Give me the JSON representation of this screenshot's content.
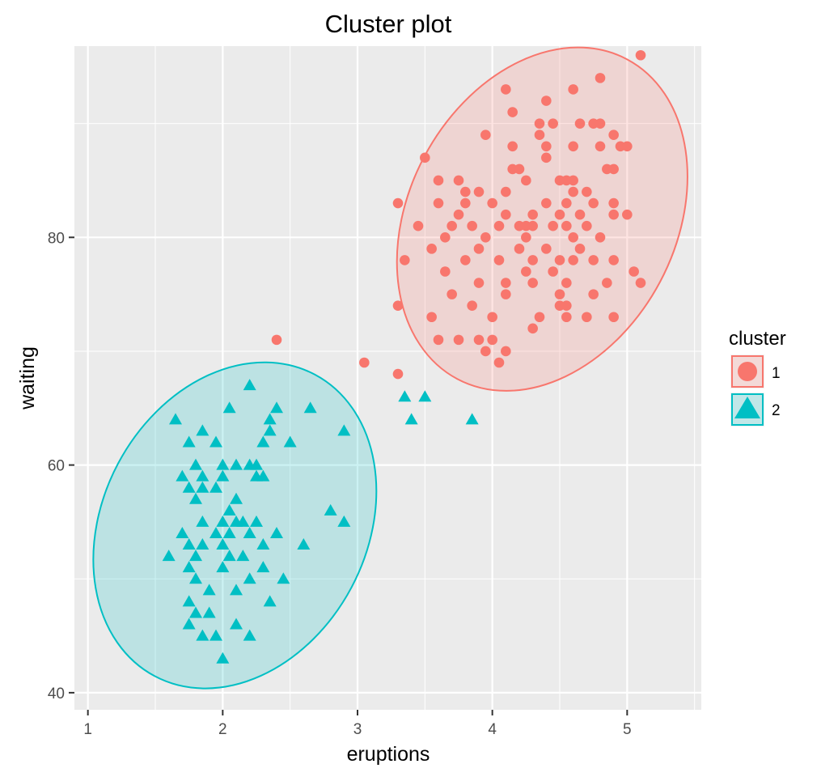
{
  "chart_data": {
    "type": "scatter",
    "title": "Cluster plot",
    "xlabel": "eruptions",
    "ylabel": "waiting",
    "xlim": [
      0.9,
      5.55
    ],
    "ylim": [
      38.5,
      96.8
    ],
    "xticks": [
      1,
      2,
      3,
      4,
      5
    ],
    "yticks": [
      40,
      60,
      80
    ],
    "grid": true,
    "legend": {
      "title": "cluster",
      "position": "right"
    },
    "colors": {
      "1": "#F8766D",
      "2": "#00BFC4"
    },
    "series": [
      {
        "name": "1",
        "marker": "circle",
        "points": [
          [
            5.1,
            96
          ],
          [
            4.8,
            94
          ],
          [
            4.6,
            93
          ],
          [
            4.1,
            93
          ],
          [
            4.4,
            92
          ],
          [
            4.15,
            91
          ],
          [
            4.35,
            90
          ],
          [
            4.45,
            90
          ],
          [
            4.65,
            90
          ],
          [
            4.75,
            90
          ],
          [
            4.8,
            90
          ],
          [
            4.9,
            89
          ],
          [
            3.95,
            89
          ],
          [
            4.35,
            89
          ],
          [
            4.15,
            88
          ],
          [
            4.4,
            88
          ],
          [
            4.6,
            88
          ],
          [
            4.8,
            88
          ],
          [
            4.95,
            88
          ],
          [
            5.0,
            88
          ],
          [
            3.5,
            87
          ],
          [
            4.4,
            87
          ],
          [
            4.15,
            86
          ],
          [
            4.2,
            86
          ],
          [
            4.85,
            86
          ],
          [
            4.9,
            86
          ],
          [
            3.75,
            85
          ],
          [
            3.6,
            85
          ],
          [
            4.25,
            85
          ],
          [
            4.5,
            85
          ],
          [
            4.55,
            85
          ],
          [
            4.6,
            85
          ],
          [
            3.8,
            84
          ],
          [
            3.9,
            84
          ],
          [
            4.1,
            84
          ],
          [
            4.6,
            84
          ],
          [
            4.7,
            84
          ],
          [
            3.3,
            83
          ],
          [
            3.6,
            83
          ],
          [
            3.8,
            83
          ],
          [
            4.0,
            83
          ],
          [
            4.4,
            83
          ],
          [
            4.55,
            83
          ],
          [
            4.75,
            83
          ],
          [
            4.9,
            83
          ],
          [
            3.75,
            82
          ],
          [
            4.1,
            82
          ],
          [
            4.3,
            82
          ],
          [
            4.5,
            82
          ],
          [
            4.65,
            82
          ],
          [
            4.9,
            82
          ],
          [
            5.0,
            82
          ],
          [
            3.45,
            81
          ],
          [
            3.7,
            81
          ],
          [
            3.85,
            81
          ],
          [
            4.05,
            81
          ],
          [
            4.2,
            81
          ],
          [
            4.25,
            81
          ],
          [
            4.3,
            81
          ],
          [
            4.45,
            81
          ],
          [
            4.55,
            81
          ],
          [
            4.7,
            81
          ],
          [
            3.65,
            80
          ],
          [
            3.95,
            80
          ],
          [
            4.25,
            80
          ],
          [
            4.6,
            80
          ],
          [
            4.8,
            80
          ],
          [
            3.55,
            79
          ],
          [
            3.9,
            79
          ],
          [
            4.2,
            79
          ],
          [
            4.4,
            79
          ],
          [
            4.65,
            79
          ],
          [
            3.35,
            78
          ],
          [
            3.8,
            78
          ],
          [
            4.05,
            78
          ],
          [
            4.3,
            78
          ],
          [
            4.5,
            78
          ],
          [
            4.6,
            78
          ],
          [
            4.75,
            78
          ],
          [
            4.9,
            78
          ],
          [
            3.65,
            77
          ],
          [
            4.25,
            77
          ],
          [
            4.45,
            77
          ],
          [
            5.05,
            77
          ],
          [
            3.9,
            76
          ],
          [
            4.1,
            76
          ],
          [
            4.3,
            76
          ],
          [
            4.55,
            76
          ],
          [
            4.85,
            76
          ],
          [
            5.1,
            76
          ],
          [
            3.7,
            75
          ],
          [
            4.1,
            75
          ],
          [
            4.5,
            75
          ],
          [
            4.75,
            75
          ],
          [
            3.3,
            74
          ],
          [
            3.85,
            74
          ],
          [
            4.5,
            74
          ],
          [
            4.55,
            74
          ],
          [
            3.55,
            73
          ],
          [
            4.0,
            73
          ],
          [
            4.35,
            73
          ],
          [
            4.55,
            73
          ],
          [
            4.7,
            73
          ],
          [
            4.9,
            73
          ],
          [
            4.3,
            72
          ],
          [
            3.6,
            71
          ],
          [
            3.75,
            71
          ],
          [
            3.9,
            71
          ],
          [
            4.0,
            71
          ],
          [
            3.95,
            70
          ],
          [
            4.1,
            70
          ],
          [
            4.05,
            69
          ],
          [
            2.4,
            71
          ],
          [
            3.05,
            69
          ],
          [
            3.3,
            68
          ]
        ]
      },
      {
        "name": "2",
        "marker": "triangle",
        "points": [
          [
            2.2,
            67
          ],
          [
            3.35,
            66
          ],
          [
            3.5,
            66
          ],
          [
            2.05,
            65
          ],
          [
            2.4,
            65
          ],
          [
            2.65,
            65
          ],
          [
            1.65,
            64
          ],
          [
            2.35,
            64
          ],
          [
            3.4,
            64
          ],
          [
            3.85,
            64
          ],
          [
            1.85,
            63
          ],
          [
            2.35,
            63
          ],
          [
            2.9,
            63
          ],
          [
            1.75,
            62
          ],
          [
            1.95,
            62
          ],
          [
            2.3,
            62
          ],
          [
            2.5,
            62
          ],
          [
            1.8,
            60
          ],
          [
            2.0,
            60
          ],
          [
            2.1,
            60
          ],
          [
            2.2,
            60
          ],
          [
            2.25,
            60
          ],
          [
            1.7,
            59
          ],
          [
            1.85,
            59
          ],
          [
            2.0,
            59
          ],
          [
            2.25,
            59
          ],
          [
            2.3,
            59
          ],
          [
            1.75,
            58
          ],
          [
            1.85,
            58
          ],
          [
            1.95,
            58
          ],
          [
            1.8,
            57
          ],
          [
            2.1,
            57
          ],
          [
            2.05,
            56
          ],
          [
            2.8,
            56
          ],
          [
            1.85,
            55
          ],
          [
            2.0,
            55
          ],
          [
            2.1,
            55
          ],
          [
            2.15,
            55
          ],
          [
            2.25,
            55
          ],
          [
            2.9,
            55
          ],
          [
            1.95,
            54
          ],
          [
            2.05,
            54
          ],
          [
            2.2,
            54
          ],
          [
            2.4,
            54
          ],
          [
            1.7,
            54
          ],
          [
            1.75,
            53
          ],
          [
            1.85,
            53
          ],
          [
            2.0,
            53
          ],
          [
            2.3,
            53
          ],
          [
            2.6,
            53
          ],
          [
            1.6,
            52
          ],
          [
            1.8,
            52
          ],
          [
            2.05,
            52
          ],
          [
            2.15,
            52
          ],
          [
            1.75,
            51
          ],
          [
            2.0,
            51
          ],
          [
            2.3,
            51
          ],
          [
            1.8,
            50
          ],
          [
            2.2,
            50
          ],
          [
            2.45,
            50
          ],
          [
            1.9,
            49
          ],
          [
            2.1,
            49
          ],
          [
            1.75,
            48
          ],
          [
            2.35,
            48
          ],
          [
            1.8,
            47
          ],
          [
            1.9,
            47
          ],
          [
            1.75,
            46
          ],
          [
            2.1,
            46
          ],
          [
            1.85,
            45
          ],
          [
            1.95,
            45
          ],
          [
            2.2,
            45
          ],
          [
            2.0,
            43
          ]
        ]
      }
    ],
    "ellipses": [
      {
        "cluster": "1",
        "cx": 4.37,
        "cy": 81.6,
        "rx_data": 0.99,
        "ry_data": 15.9
      },
      {
        "cluster": "2",
        "cx": 2.09,
        "cy": 54.7,
        "rx_data": 0.98,
        "ry_data": 15.0
      }
    ]
  }
}
